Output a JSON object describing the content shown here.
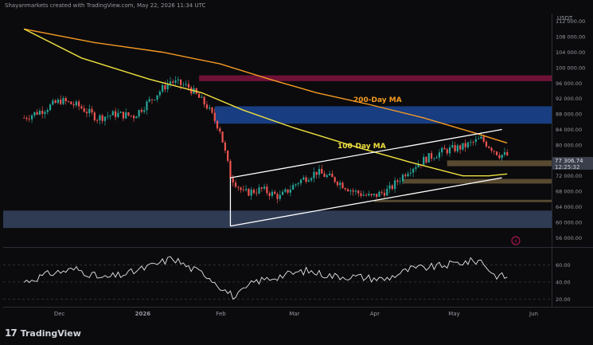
{
  "header": {
    "text": "Shayanmarkets created with TradingView.com, May 22, 2026 11:34 UTC"
  },
  "footer": {
    "logo_text": "TradingView",
    "logo_mark": "17"
  },
  "colors": {
    "bull": "#26a69a",
    "bear": "#ef5350",
    "ma100": "#f0e040",
    "ma200": "#f59a23",
    "channel": "#ffffff",
    "supply_zone": "#c2185b",
    "blue_zone": "#1e4fa8",
    "support_zone": "#6b5a3a",
    "rsi": "#e6e6e6"
  },
  "chart_data": [
    {
      "type": "line",
      "title": "",
      "price_axis_unit": "USDT",
      "y_ticks": [
        "112 000.00",
        "108 000.00",
        "104 000.00",
        "100 000.00",
        "96 000.00",
        "92 000.00",
        "88 000.00",
        "84 000.00",
        "80 000.00",
        "76 000.00",
        "72 000.00",
        "68 000.00",
        "64 000.00",
        "60 000.00",
        "56 000.00"
      ],
      "ylim": [
        54000,
        114000
      ],
      "x_ticks": [
        "Dec",
        "2026",
        "Feb",
        "Mar",
        "Apr",
        "May",
        "Jun"
      ],
      "current_price_label": "77 306.74",
      "countdown_label": "12:25:32",
      "annotations": [
        "200-Day MA",
        "100-Day MA"
      ],
      "series": [
        {
          "name": "200-Day MA",
          "x": [
            "2025-11-18",
            "2025-12-15",
            "2026-01-10",
            "2026-02-01",
            "2026-02-20",
            "2026-03-10",
            "2026-03-30",
            "2026-04-20",
            "2026-05-10",
            "2026-05-22"
          ],
          "y": [
            110000,
            106500,
            104000,
            101000,
            97000,
            93500,
            90500,
            87000,
            83000,
            80500
          ]
        },
        {
          "name": "100-Day MA",
          "x": [
            "2025-11-18",
            "2025-12-10",
            "2026-01-05",
            "2026-01-25",
            "2026-02-10",
            "2026-03-01",
            "2026-03-25",
            "2026-04-15",
            "2026-05-05",
            "2026-05-15",
            "2026-05-22"
          ],
          "y": [
            110000,
            102500,
            97000,
            93500,
            89000,
            84500,
            79500,
            75500,
            72000,
            72000,
            72500
          ]
        },
        {
          "name": "Price (close)",
          "x": [
            "2025-11-18",
            "2025-11-25",
            "2025-12-02",
            "2025-12-09",
            "2025-12-16",
            "2025-12-23",
            "2025-12-30",
            "2026-01-06",
            "2026-01-13",
            "2026-01-20",
            "2026-01-27",
            "2026-02-01",
            "2026-02-05",
            "2026-02-10",
            "2026-02-17",
            "2026-02-24",
            "2026-03-03",
            "2026-03-10",
            "2026-03-17",
            "2026-03-24",
            "2026-03-31",
            "2026-04-07",
            "2026-04-14",
            "2026-04-21",
            "2026-04-28",
            "2026-05-05",
            "2026-05-12",
            "2026-05-19",
            "2026-05-22"
          ],
          "y": [
            87000,
            89000,
            91500,
            90000,
            87000,
            88000,
            87500,
            92000,
            96500,
            95000,
            90000,
            84000,
            72000,
            67500,
            68500,
            66500,
            70500,
            73000,
            71000,
            68000,
            66500,
            68500,
            73500,
            76500,
            78500,
            79500,
            81500,
            77500,
            77306.74
          ]
        }
      ],
      "zones": [
        {
          "label": "supply",
          "from": 96500,
          "to": 98000
        },
        {
          "label": "blue",
          "from": 85500,
          "to": 90000
        },
        {
          "label": "support_low",
          "from": 58500,
          "to": 63000
        },
        {
          "label": "support_a",
          "from": 74500,
          "to": 76000
        },
        {
          "label": "support_b",
          "from": 70000,
          "to": 71200
        },
        {
          "label": "support_c",
          "from": 65200,
          "to": 65800
        }
      ],
      "channel": {
        "upper": {
          "x": [
            "2026-02-05",
            "2026-05-20"
          ],
          "y": [
            71500,
            84000
          ]
        },
        "lower": {
          "x": [
            "2026-02-05",
            "2026-05-20"
          ],
          "y": [
            59000,
            71500
          ]
        }
      }
    },
    {
      "type": "line",
      "title": "",
      "name": "RSI",
      "y_ticks": [
        "60.00",
        "40.00",
        "20.00"
      ],
      "ylim": [
        12,
        78
      ],
      "x": [
        "2025-11-18",
        "2025-11-28",
        "2025-12-08",
        "2025-12-18",
        "2025-12-28",
        "2026-01-07",
        "2026-01-14",
        "2026-01-20",
        "2026-01-27",
        "2026-02-03",
        "2026-02-07",
        "2026-02-14",
        "2026-02-24",
        "2026-03-06",
        "2026-03-16",
        "2026-03-26",
        "2026-04-05",
        "2026-04-15",
        "2026-04-25",
        "2026-05-05",
        "2026-05-12",
        "2026-05-17",
        "2026-05-22"
      ],
      "y": [
        40,
        50,
        55,
        44,
        50,
        60,
        68,
        57,
        48,
        30,
        22,
        40,
        47,
        53,
        47,
        46,
        43,
        55,
        58,
        63,
        65,
        48,
        46
      ]
    }
  ]
}
